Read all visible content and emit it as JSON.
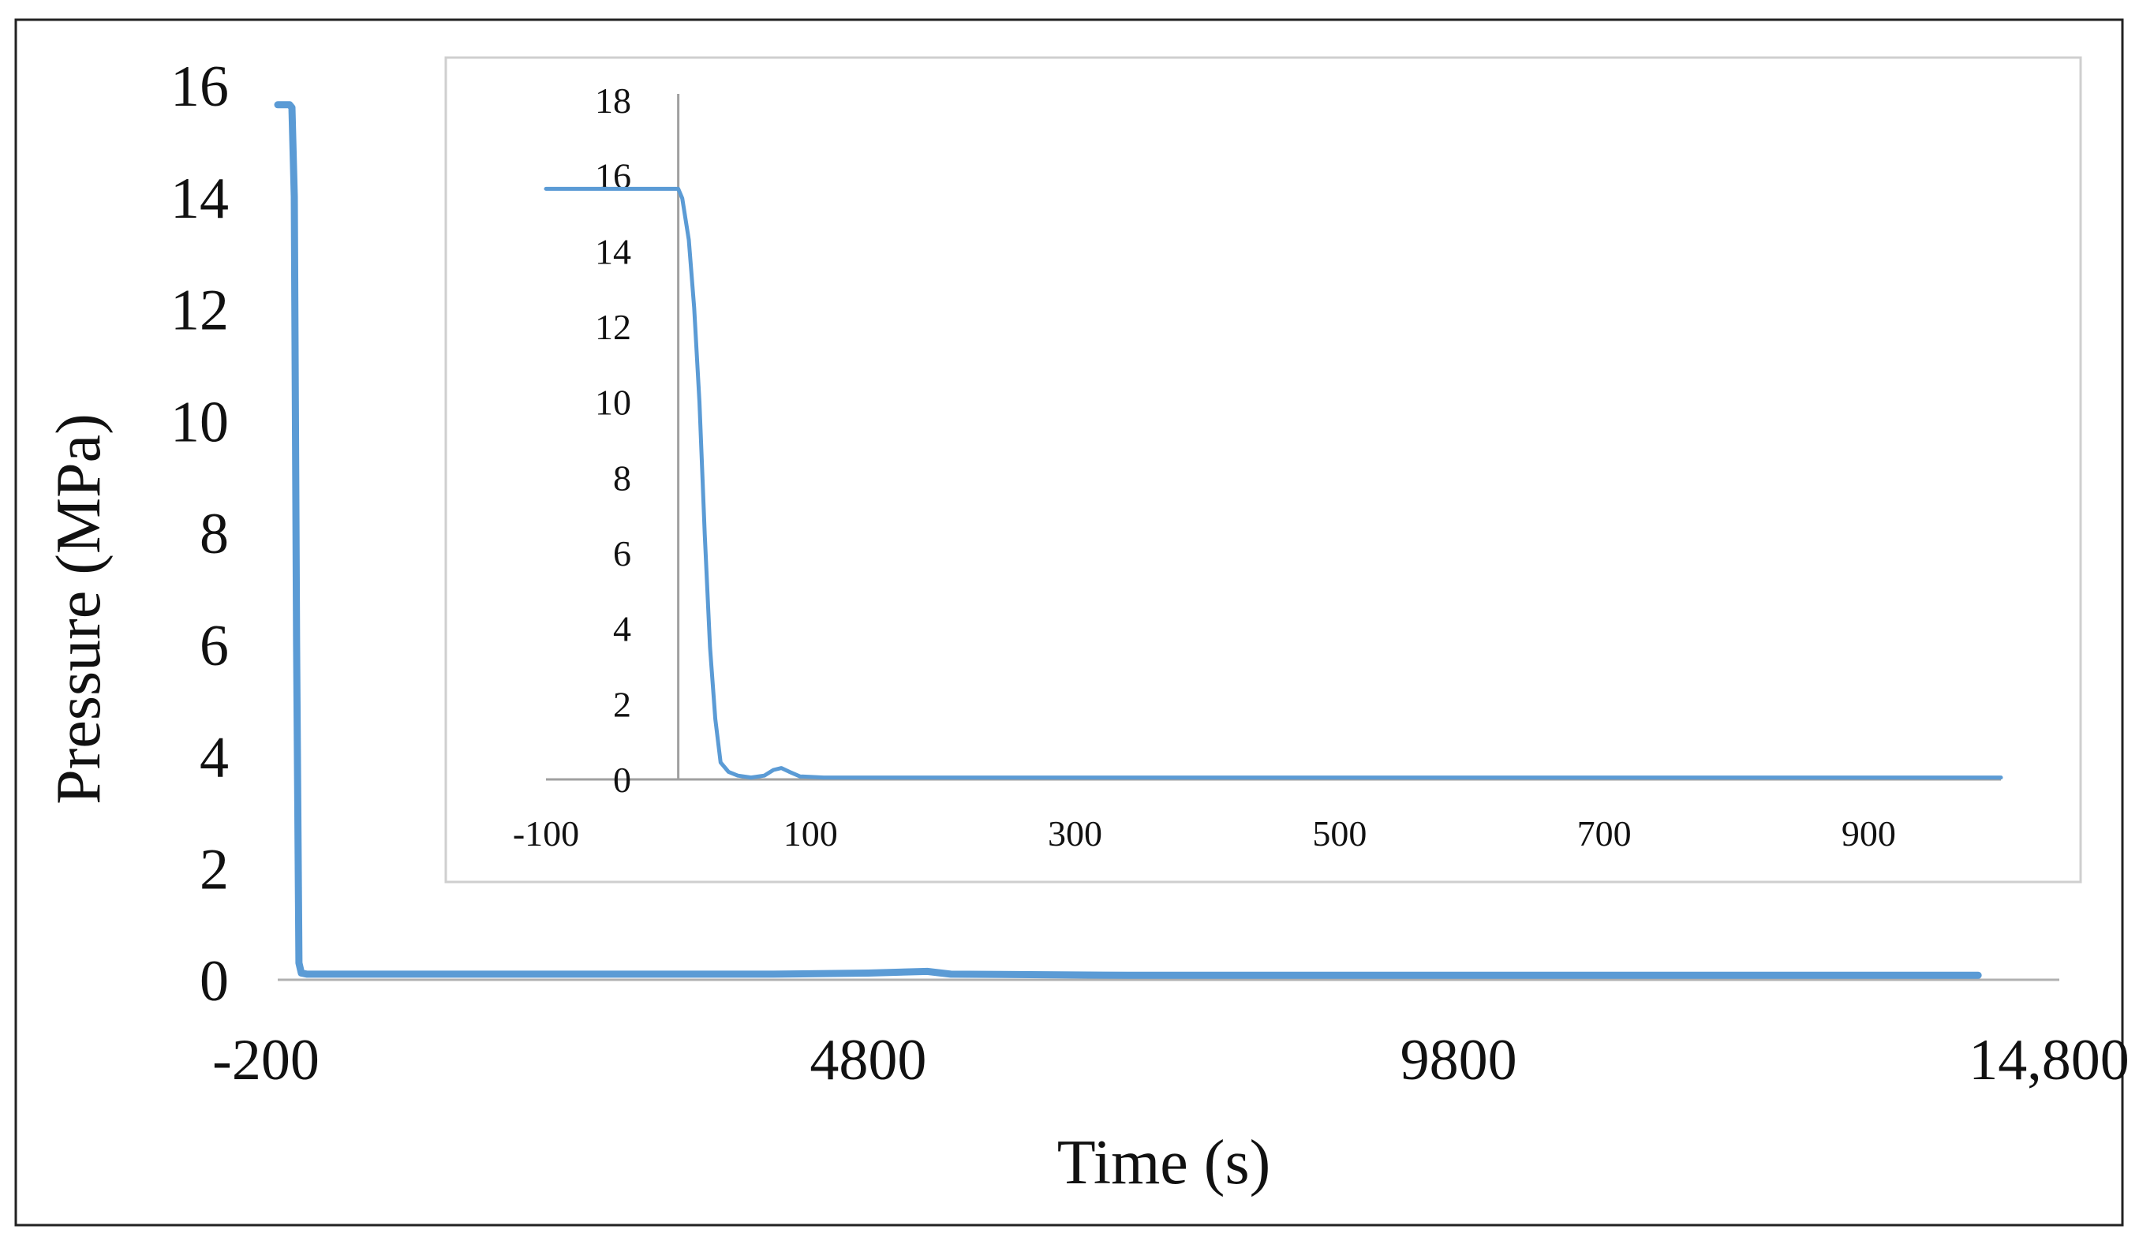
{
  "chart_data": [
    {
      "id": "main",
      "type": "line",
      "title": "",
      "xlabel": "Time (s)",
      "ylabel": "Pressure (MPa)",
      "xlim": [
        -200,
        14800
      ],
      "ylim": [
        0,
        16
      ],
      "x_ticks": [
        -200,
        4800,
        9800,
        14800
      ],
      "x_tick_labels": [
        "-200",
        "4800",
        "9800",
        "14,800"
      ],
      "y_ticks": [
        0,
        2,
        4,
        6,
        8,
        10,
        12,
        14,
        16
      ],
      "y_tick_labels": [
        "0",
        "2",
        "4",
        "6",
        "8",
        "10",
        "12",
        "14",
        "16"
      ],
      "grid": false,
      "legend": "none",
      "series": [
        {
          "color": "#5b9bd5",
          "points": [
            [
              -200,
              15.65
            ],
            [
              -150,
              15.65
            ],
            [
              -100,
              15.65
            ],
            [
              -80,
              15.6
            ],
            [
              -60,
              14.0
            ],
            [
              -40,
              6.0
            ],
            [
              -20,
              0.3
            ],
            [
              0,
              0.12
            ],
            [
              50,
              0.1
            ],
            [
              200,
              0.1
            ],
            [
              1000,
              0.1
            ],
            [
              2000,
              0.1
            ],
            [
              3000,
              0.1
            ],
            [
              4000,
              0.1
            ],
            [
              4800,
              0.12
            ],
            [
              5300,
              0.15
            ],
            [
              5500,
              0.1
            ],
            [
              7000,
              0.08
            ],
            [
              9800,
              0.08
            ],
            [
              12000,
              0.08
            ],
            [
              14200,
              0.08
            ]
          ]
        }
      ]
    },
    {
      "id": "inset",
      "type": "line",
      "title": "",
      "xlabel": "",
      "ylabel": "",
      "xlim": [
        -100,
        1000
      ],
      "ylim": [
        0,
        18
      ],
      "x_ticks": [
        -100,
        100,
        300,
        500,
        700,
        900
      ],
      "x_tick_labels": [
        "-100",
        "100",
        "300",
        "500",
        "700",
        "900"
      ],
      "y_ticks": [
        0,
        2,
        4,
        6,
        8,
        10,
        12,
        14,
        16,
        18
      ],
      "y_tick_labels": [
        "0",
        "2",
        "4",
        "6",
        "8",
        "10",
        "12",
        "14",
        "16",
        "18"
      ],
      "grid": false,
      "legend": "none",
      "series": [
        {
          "color": "#5b9bd5",
          "points": [
            [
              -100,
              15.65
            ],
            [
              -50,
              15.65
            ],
            [
              0,
              15.65
            ],
            [
              3,
              15.4
            ],
            [
              8,
              14.3
            ],
            [
              12,
              12.5
            ],
            [
              16,
              10.0
            ],
            [
              20,
              6.5
            ],
            [
              24,
              3.5
            ],
            [
              28,
              1.6
            ],
            [
              32,
              0.45
            ],
            [
              38,
              0.2
            ],
            [
              45,
              0.1
            ],
            [
              55,
              0.05
            ],
            [
              65,
              0.1
            ],
            [
              72,
              0.25
            ],
            [
              78,
              0.3
            ],
            [
              84,
              0.2
            ],
            [
              92,
              0.08
            ],
            [
              110,
              0.05
            ],
            [
              200,
              0.05
            ],
            [
              400,
              0.05
            ],
            [
              600,
              0.05
            ],
            [
              800,
              0.05
            ],
            [
              1000,
              0.05
            ]
          ]
        }
      ]
    }
  ]
}
